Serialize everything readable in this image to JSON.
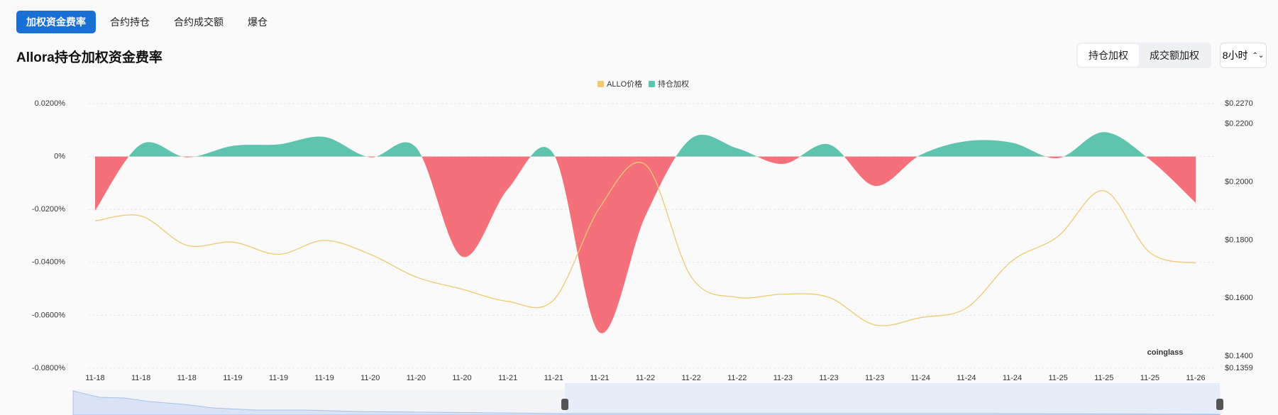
{
  "ui": {
    "tabs": [
      "加权资金费率",
      "合约持仓",
      "合约成交额",
      "爆仓"
    ],
    "weighting": [
      "持仓加权",
      "成交额加权"
    ],
    "interval": "8小时"
  },
  "chart_data": {
    "type": "area",
    "title": "Allora持仓加权资金费率",
    "watermark": "coinglass",
    "categories": [
      "11-18",
      "11-18",
      "11-18",
      "11-19",
      "11-19",
      "11-19",
      "11-20",
      "11-20",
      "11-20",
      "11-21",
      "11-21",
      "11-21",
      "11-22",
      "11-22",
      "11-22",
      "11-23",
      "11-23",
      "11-23",
      "11-24",
      "11-24",
      "11-24",
      "11-25",
      "11-25",
      "11-25",
      "11-26"
    ],
    "series": [
      {
        "name": "ALLO价格",
        "type": "line",
        "axis": "y2",
        "color": "#f0c873",
        "values": [
          0.1866,
          0.1883,
          0.1782,
          0.1793,
          0.1751,
          0.1799,
          0.1751,
          0.1673,
          0.1631,
          0.1589,
          0.1594,
          0.1911,
          0.206,
          0.1673,
          0.1603,
          0.1614,
          0.1603,
          0.1508,
          0.1533,
          0.1566,
          0.1729,
          0.1813,
          0.197,
          0.1757,
          0.1721
        ]
      },
      {
        "name": "持仓加权",
        "type": "area",
        "color": "#5ec4ae",
        "negative_color": "#f4717c",
        "values": [
          -0.0205,
          0.0046,
          -0.0003,
          0.004,
          0.0046,
          0.0074,
          -0.0003,
          0.0034,
          -0.0378,
          -0.0123,
          0.0009,
          -0.0665,
          -0.0225,
          0.0068,
          0.0031,
          -0.0028,
          0.0046,
          -0.0111,
          0.0006,
          0.0058,
          0.0052,
          -0.0006,
          0.0092,
          -0.0012,
          -0.0175
        ]
      }
    ],
    "ylim": [
      -0.08,
      0.02
    ],
    "yticks": [
      {
        "value": 0.02,
        "label": "0.0200%"
      },
      {
        "value": 0,
        "label": "0%"
      },
      {
        "value": -0.02,
        "label": "-0.0200%"
      },
      {
        "value": -0.04,
        "label": "-0.0400%"
      },
      {
        "value": -0.06,
        "label": "-0.0600%"
      },
      {
        "value": -0.08,
        "label": "-0.0800%"
      }
    ],
    "y2lim": [
      0.1359,
      0.227
    ],
    "y2ticks": [
      {
        "value": 0.227,
        "label": "$0.2270"
      },
      {
        "value": 0.22,
        "label": "$0.2200"
      },
      {
        "value": 0.2,
        "label": "$0.2000"
      },
      {
        "value": 0.18,
        "label": "$0.1800"
      },
      {
        "value": 0.16,
        "label": "$0.1600"
      },
      {
        "value": 0.14,
        "label": "$0.1400"
      },
      {
        "value": 0.1359,
        "label": "$0.1359"
      }
    ],
    "grid": true
  }
}
